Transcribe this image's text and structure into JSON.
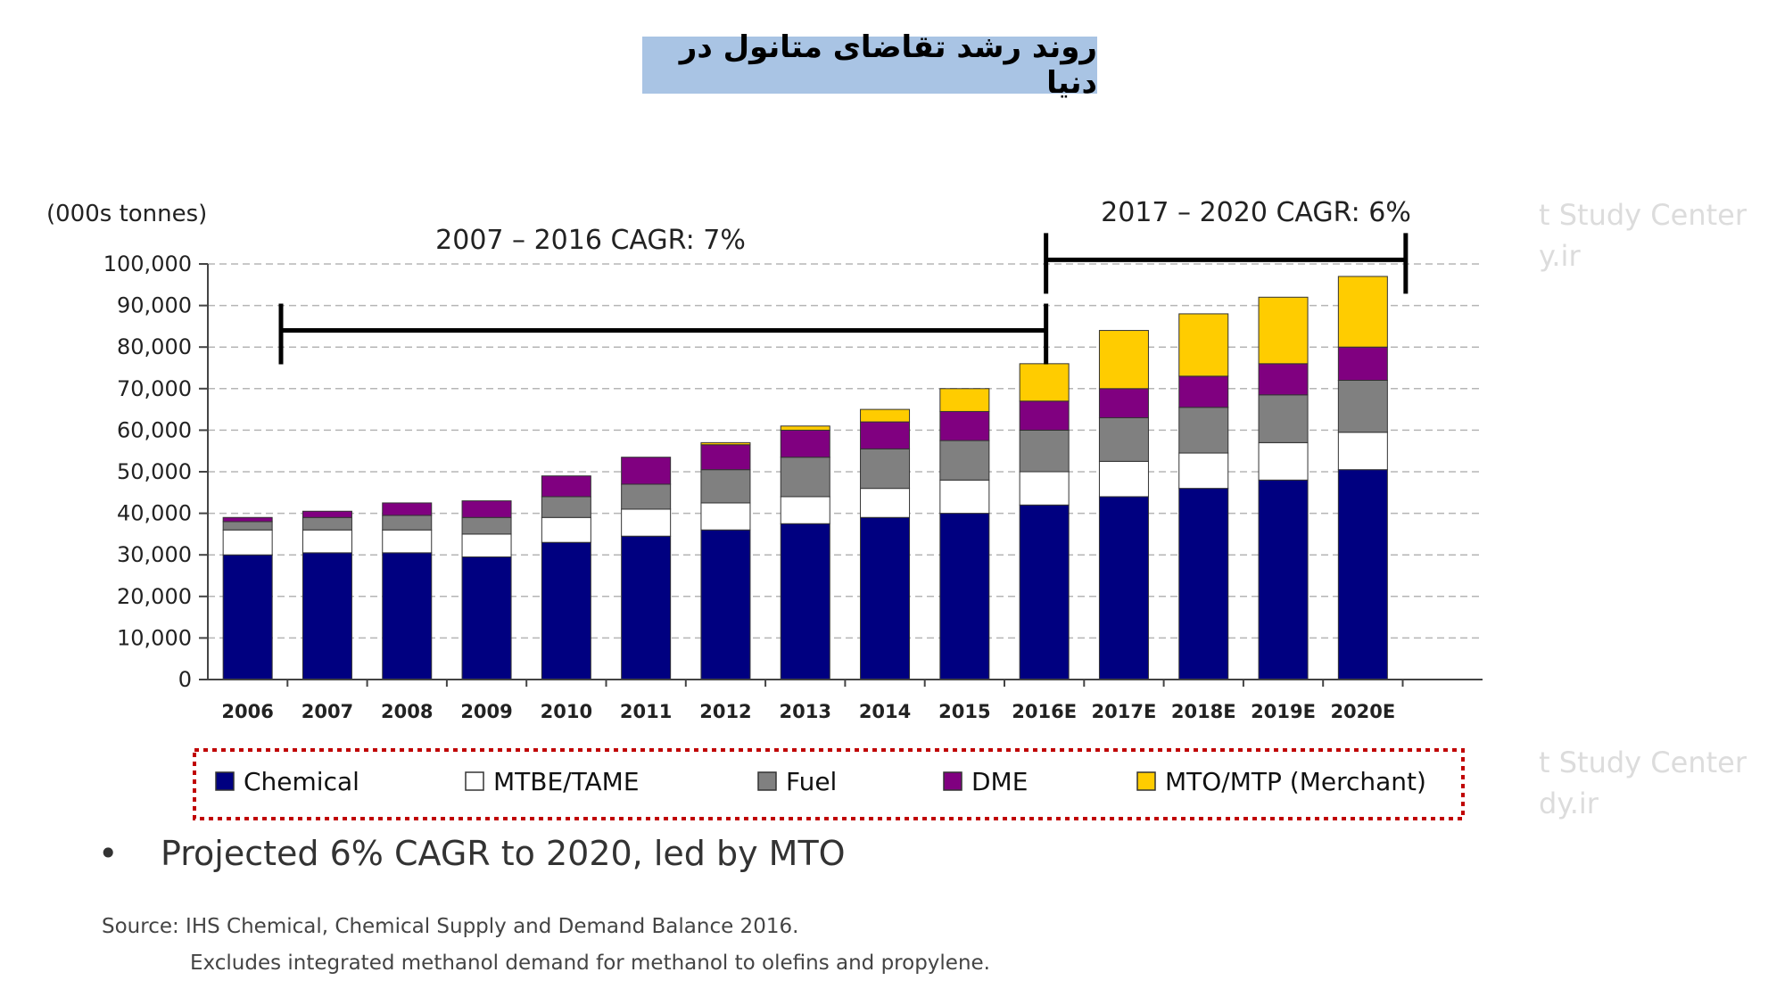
{
  "page_title": "روند رشد تقاضای متانول در دنیا",
  "chart_data": {
    "type": "bar",
    "stacked": true,
    "ylabel": "(000s tonnes)",
    "ylim": [
      0,
      100000
    ],
    "yticks": [
      "0",
      "10,000",
      "20,000",
      "30,000",
      "40,000",
      "50,000",
      "60,000",
      "70,000",
      "80,000",
      "90,000",
      "100,000"
    ],
    "grid": true,
    "legend_position": "bottom",
    "categories": [
      "2006",
      "2007",
      "2008",
      "2009",
      "2010",
      "2011",
      "2012",
      "2013",
      "2014",
      "2015",
      "2016E",
      "2017E",
      "2018E",
      "2019E",
      "2020E"
    ],
    "series": [
      {
        "name": "Chemical",
        "color": "#000080",
        "values": [
          30000,
          30500,
          30500,
          29500,
          33000,
          34500,
          36000,
          37500,
          39000,
          40000,
          42000,
          44000,
          46000,
          48000,
          50500
        ]
      },
      {
        "name": "MTBE/TAME",
        "color": "#ffffff",
        "values": [
          6000,
          5500,
          5500,
          5500,
          6000,
          6500,
          6500,
          6500,
          7000,
          8000,
          8000,
          8500,
          8500,
          9000,
          9000
        ]
      },
      {
        "name": "Fuel",
        "color": "#808080",
        "values": [
          2000,
          3000,
          3500,
          4000,
          5000,
          6000,
          8000,
          9500,
          9500,
          9500,
          10000,
          10500,
          11000,
          11500,
          12500
        ]
      },
      {
        "name": "DME",
        "color": "#800080",
        "values": [
          1000,
          1500,
          3000,
          4000,
          5000,
          6500,
          6000,
          6500,
          6500,
          7000,
          7000,
          7000,
          7500,
          7500,
          8000
        ]
      },
      {
        "name": "MTO/MTP (Merchant)",
        "color": "#ffcc00",
        "values": [
          0,
          0,
          0,
          0,
          0,
          0,
          500,
          1000,
          3000,
          5500,
          9000,
          14000,
          15000,
          16000,
          17000
        ]
      }
    ],
    "annotations": [
      {
        "text": "2007 – 2016 CAGR: 7%",
        "from": "2007",
        "to": "2016E",
        "level": 84000
      },
      {
        "text": "2017 – 2020 CAGR: 6%",
        "from": "2016E",
        "to": "2020E",
        "level": 101000
      }
    ]
  },
  "bullet_text": "Projected 6% CAGR to 2020, led by MTO",
  "bullet_symbol": "•",
  "source_line1": "Source:  IHS Chemical, Chemical Supply and Demand Balance 2016.",
  "source_line2": "Excludes integrated methanol demand for methanol to olefins and propylene.",
  "watermarks": [
    "t Study Center",
    "y.ir",
    "t Study Center",
    "dy.ir"
  ]
}
